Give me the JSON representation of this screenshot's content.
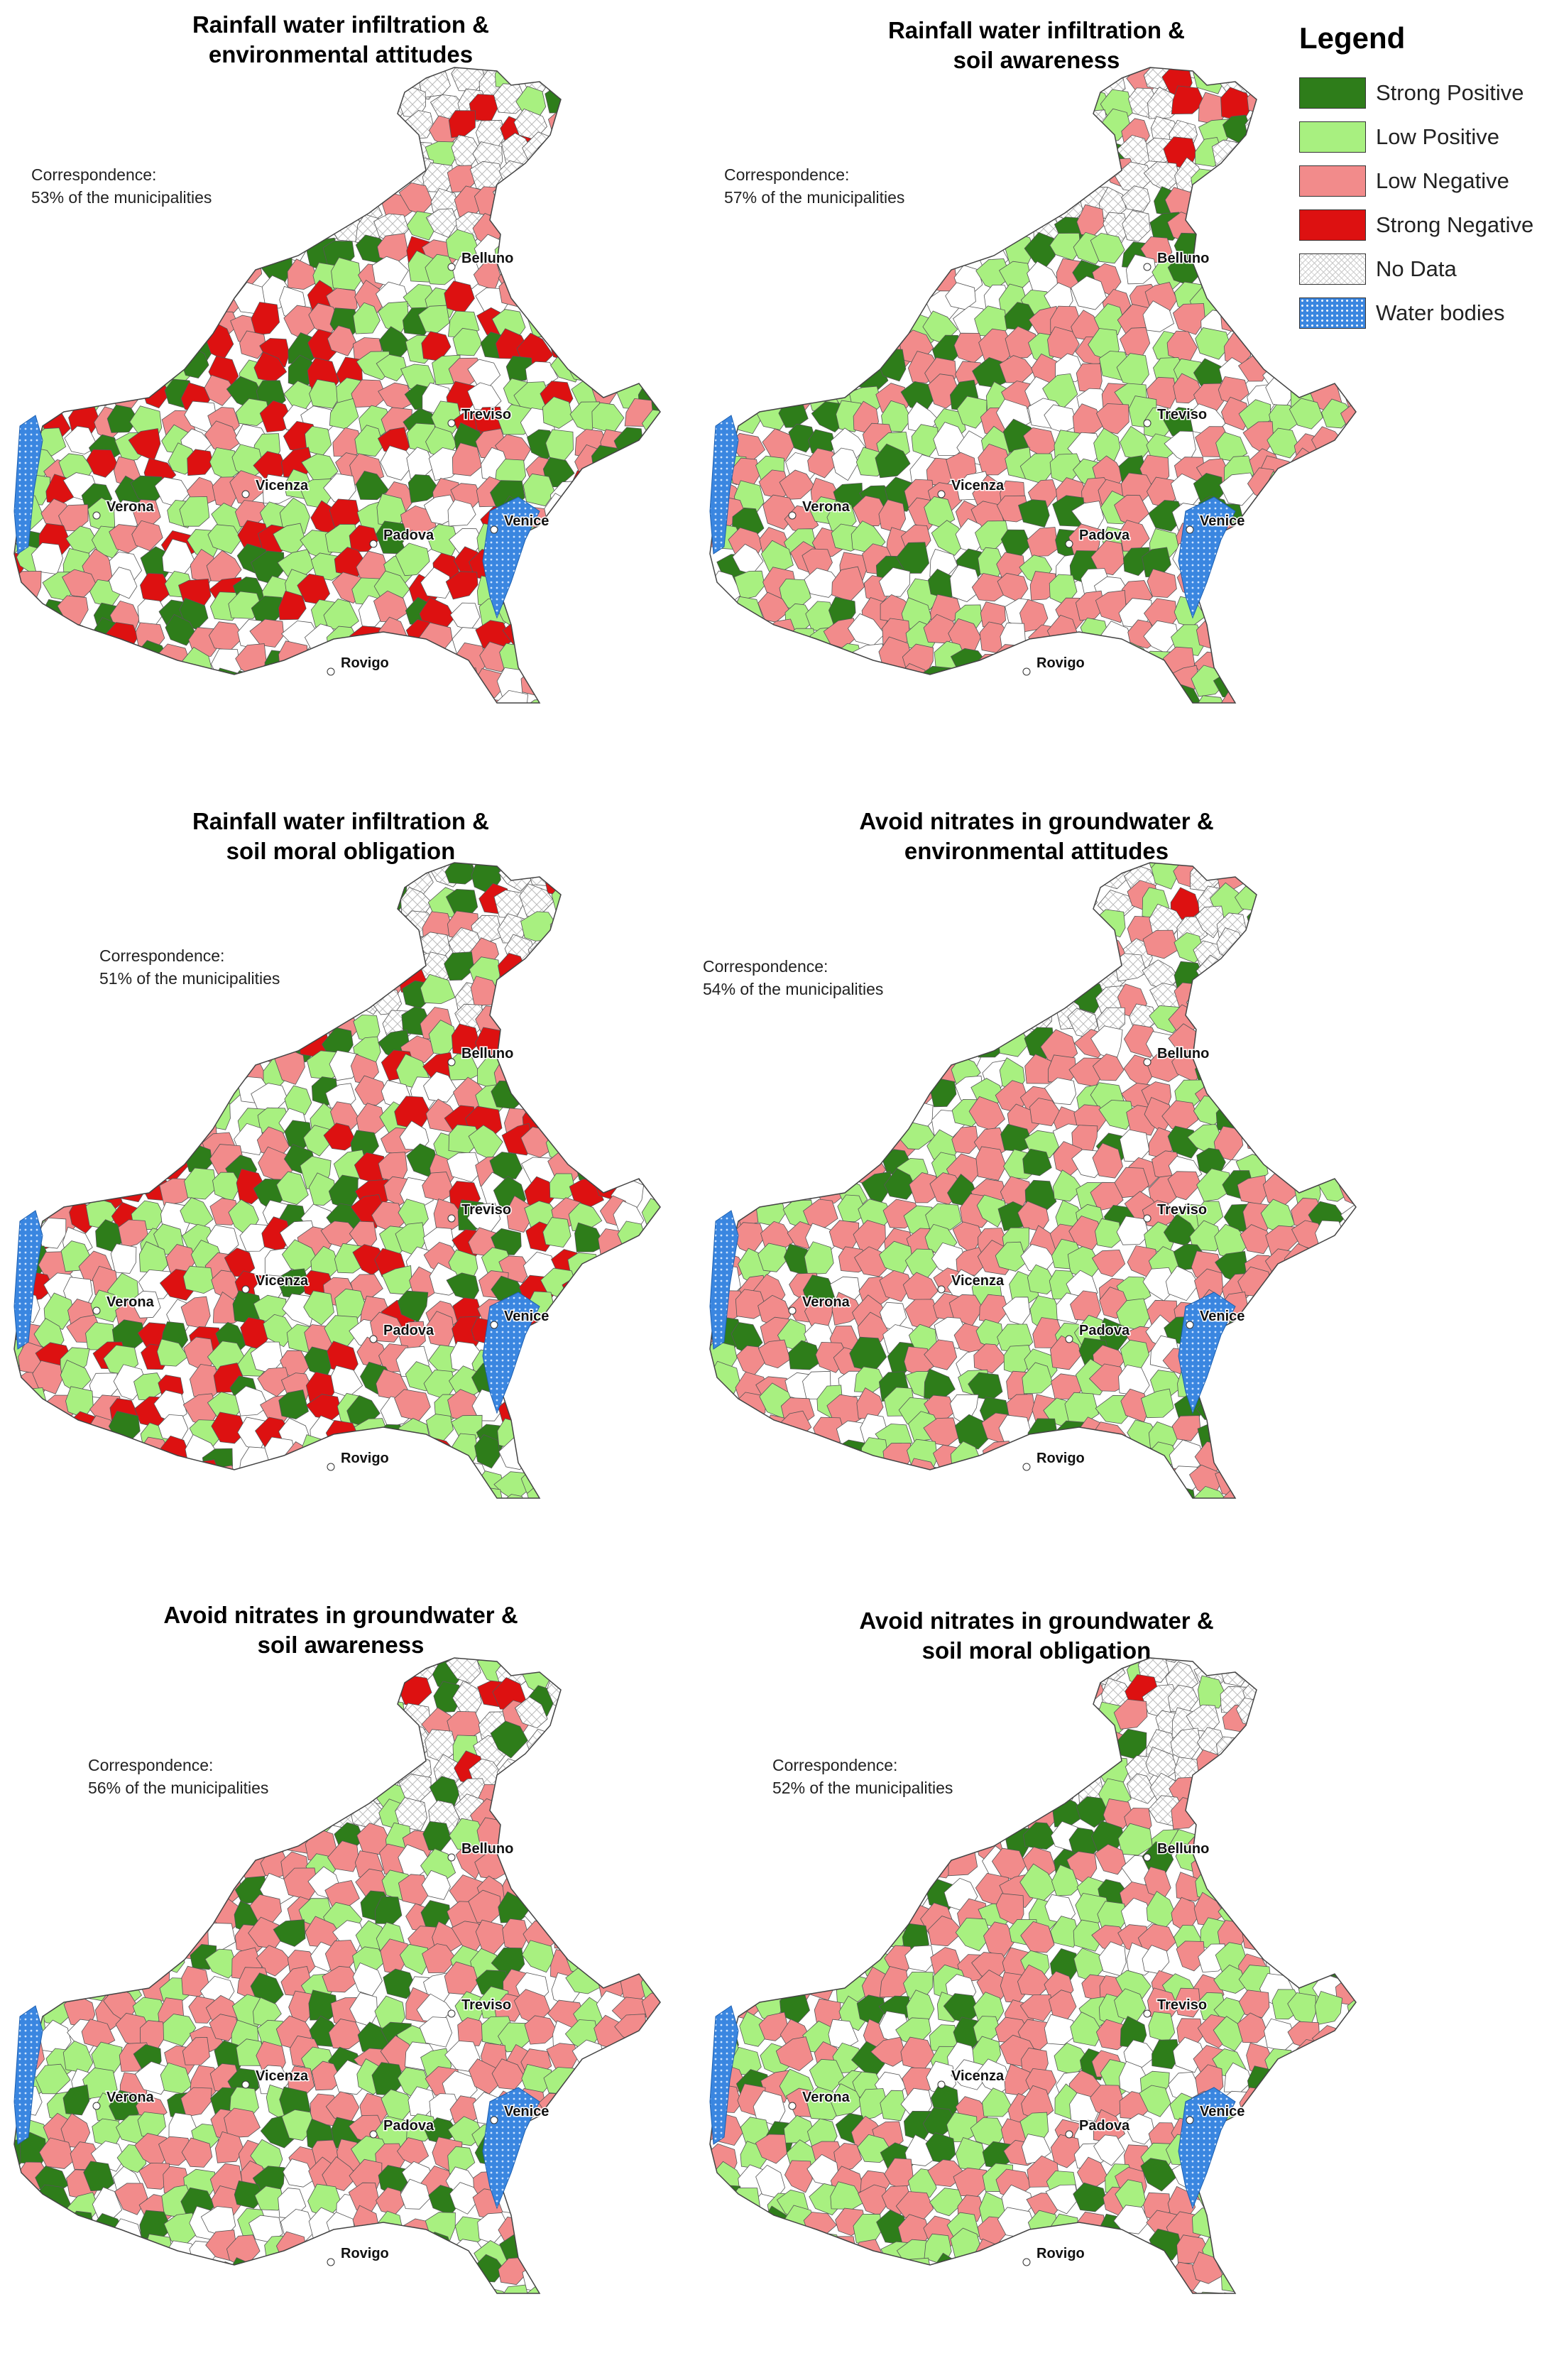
{
  "legend": {
    "title": "Legend",
    "items": [
      {
        "label": "Strong Positive",
        "color": "#2e7d1a",
        "pattern": "solid"
      },
      {
        "label": "Low Positive",
        "color": "#a8f080",
        "pattern": "solid"
      },
      {
        "label": "Low Negative",
        "color": "#f28b8b",
        "pattern": "solid"
      },
      {
        "label": "Strong Negative",
        "color": "#dd1111",
        "pattern": "solid"
      },
      {
        "label": "No Data",
        "color": "#ffffff",
        "pattern": "crosshatch"
      },
      {
        "label": "Water bodies",
        "color": "#3a86e0",
        "pattern": "dots"
      }
    ]
  },
  "cities": [
    "Belluno",
    "Treviso",
    "Vicenza",
    "Verona",
    "Padova",
    "Venice",
    "Rovigo"
  ],
  "correspondence_label": "Correspondence:",
  "panels": [
    {
      "title_line1": "Rainfall water infiltration &",
      "title_line2": "environmental attitudes",
      "correspondence": "53% of the municipalities"
    },
    {
      "title_line1": "Rainfall water infiltration &",
      "title_line2": "soil awareness",
      "correspondence": "57% of the municipalities"
    },
    {
      "title_line1": "Rainfall water infiltration &",
      "title_line2": "soil moral obligation",
      "correspondence": "51% of the municipalities"
    },
    {
      "title_line1": "Avoid nitrates in groundwater &",
      "title_line2": "environmental attitudes",
      "correspondence": "54% of the municipalities"
    },
    {
      "title_line1": "Avoid nitrates in groundwater &",
      "title_line2": "soil awareness",
      "correspondence": "56% of the municipalities"
    },
    {
      "title_line1": "Avoid nitrates in groundwater &",
      "title_line2": "soil moral obligation",
      "correspondence": "52% of the municipalities"
    }
  ]
}
